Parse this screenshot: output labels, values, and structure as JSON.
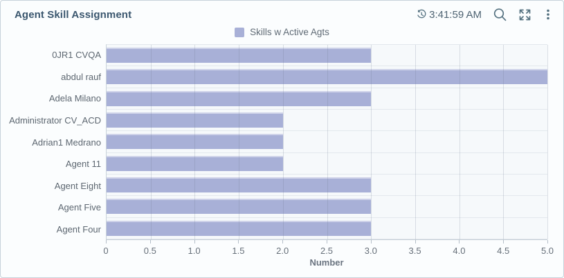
{
  "header": {
    "title": "Agent Skill Assignment",
    "timestamp": "3:41:59 AM",
    "icons": [
      "clock-history-icon",
      "search-icon",
      "fullscreen-expand-icon",
      "kebab-menu-icon"
    ],
    "icon_color": "#53707f"
  },
  "legend": {
    "label": "Skills w Active Agts",
    "swatch_color": "#a8b0d7"
  },
  "chart_data": {
    "type": "bar",
    "orientation": "horizontal",
    "title": "Agent Skill Assignment",
    "series_name": "Skills w Active Agts",
    "categories": [
      "0JR1 CVQA",
      "abdul rauf",
      "Adela Milano",
      "Administrator CV_ACD",
      "Adrian1 Medrano",
      "Agent 11",
      "Agent Eight",
      "Agent Five",
      "Agent Four"
    ],
    "values": [
      3,
      5,
      3,
      2,
      2,
      2,
      3,
      3,
      3
    ],
    "xlabel": "Number",
    "ylabel": "",
    "xlim": [
      0,
      5
    ],
    "xticks": [
      0,
      0.5,
      1.0,
      1.5,
      2.0,
      2.5,
      3.0,
      3.5,
      4.0,
      4.5,
      5.0
    ],
    "xtick_labels": [
      "0",
      "0.5",
      "1.0",
      "1.5",
      "2.0",
      "2.5",
      "3.0",
      "3.5",
      "4.0",
      "4.5",
      "5.0"
    ],
    "grid": true,
    "legend_position": "top-center",
    "bar_color": "#a8b0d7"
  }
}
